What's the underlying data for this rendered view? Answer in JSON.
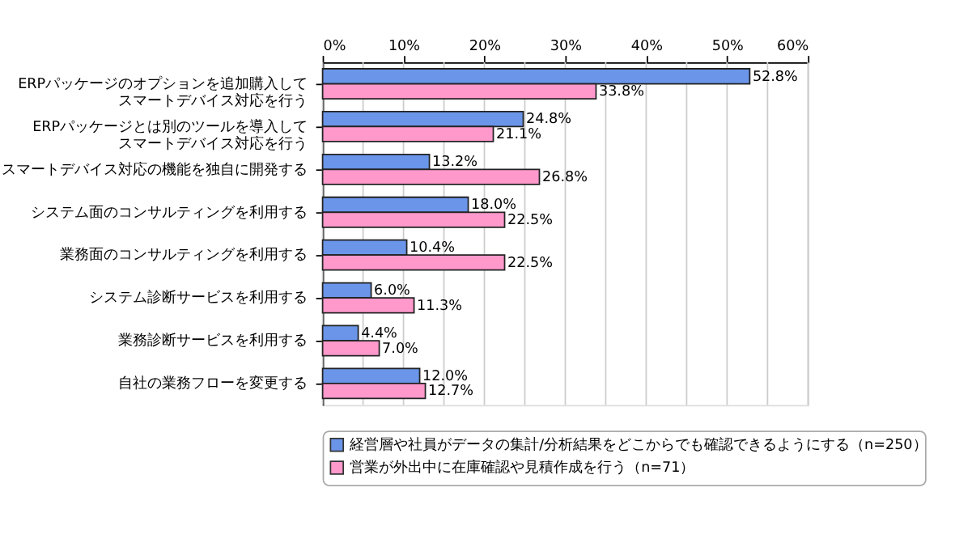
{
  "chart_data": {
    "type": "bar",
    "orientation": "horizontal",
    "categories": [
      "ERPパッケージのオプションを追加購入してスマートデバイス対応を行う",
      "ERPパッケージとは別のツールを導入してスマートデバイス対応を行う",
      "スマートデバイス対応の機能を独自に開発する",
      "システム面のコンサルティングを利用する",
      "業務面のコンサルティングを利用する",
      "システム診断サービスを利用する",
      "業務診断サービスを利用する",
      "自社の業務フローを変更する"
    ],
    "series": [
      {
        "name": "経営層や社員がデータの集計/分析結果をどこからでも確認できるようにする（n=250）",
        "color": "#6a95e8",
        "values": [
          52.8,
          24.8,
          13.2,
          18.0,
          10.4,
          6.0,
          4.4,
          12.0
        ],
        "value_labels": [
          "52.8%",
          "24.8%",
          "13.2%",
          "18.0%",
          "10.4%",
          "6.0%",
          "4.4%",
          "12.0%"
        ]
      },
      {
        "name": "営業が外出中に在庫確認や見積作成を行う（n=71）",
        "color": "#ff99cc",
        "values": [
          33.8,
          21.1,
          26.8,
          22.5,
          22.5,
          11.3,
          7.0,
          12.7
        ],
        "value_labels": [
          "33.8%",
          "21.1%",
          "26.8%",
          "22.5%",
          "22.5%",
          "11.3%",
          "7.0%",
          "12.7%"
        ]
      }
    ],
    "xlim": [
      0,
      60
    ],
    "xticks": [
      {
        "value": 0,
        "label": "0%"
      },
      {
        "value": 5,
        "label": null
      },
      {
        "value": 10,
        "label": "10%"
      },
      {
        "value": 15,
        "label": null
      },
      {
        "value": 20,
        "label": "20%"
      },
      {
        "value": 25,
        "label": null
      },
      {
        "value": 30,
        "label": "30%"
      },
      {
        "value": 35,
        "label": null
      },
      {
        "value": 40,
        "label": "40%"
      },
      {
        "value": 45,
        "label": null
      },
      {
        "value": 50,
        "label": "50%"
      },
      {
        "value": 55,
        "label": null
      },
      {
        "value": 60,
        "label": "60%"
      }
    ],
    "grid": "x",
    "legend": "bottom"
  }
}
